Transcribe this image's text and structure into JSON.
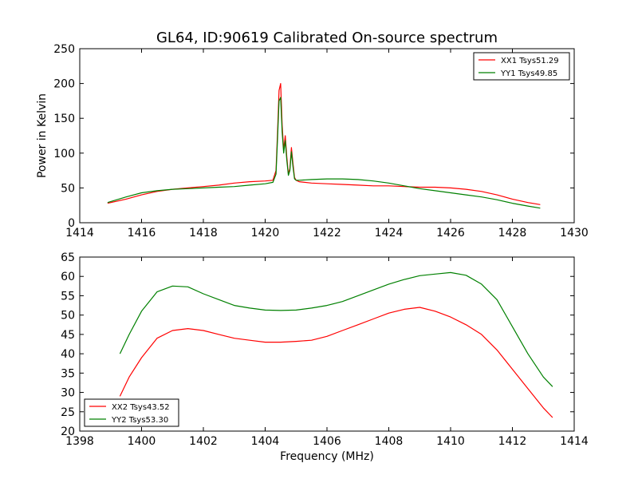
{
  "chart_data": [
    {
      "type": "line",
      "title": "GL64, ID:90619 Calibrated On-source spectrum",
      "xlabel": "",
      "ylabel": "Power in Kelvin",
      "xlim": [
        1414,
        1430
      ],
      "ylim": [
        0,
        250
      ],
      "xticks": [
        "1414",
        "1416",
        "1418",
        "1420",
        "1422",
        "1424",
        "1426",
        "1428",
        "1430"
      ],
      "yticks": [
        "0",
        "50",
        "100",
        "150",
        "200",
        "250"
      ],
      "legend_position": "top-right",
      "grid": false,
      "series": [
        {
          "name": "XX1 Tsys51.29",
          "color": "#ff0000",
          "x": [
            1414.9,
            1415.5,
            1416.0,
            1416.5,
            1417.0,
            1417.5,
            1418.0,
            1418.5,
            1419.0,
            1419.5,
            1420.0,
            1420.25,
            1420.35,
            1420.4,
            1420.45,
            1420.5,
            1420.55,
            1420.6,
            1420.65,
            1420.7,
            1420.75,
            1420.8,
            1420.85,
            1420.9,
            1420.95,
            1421.0,
            1421.1,
            1421.5,
            1422.0,
            1422.5,
            1423.0,
            1423.5,
            1424.0,
            1424.5,
            1425.0,
            1425.5,
            1426.0,
            1426.5,
            1427.0,
            1427.5,
            1428.0,
            1428.5,
            1428.9
          ],
          "y": [
            28,
            34,
            40,
            45,
            48,
            50,
            52,
            54,
            57,
            59,
            60,
            61,
            75,
            130,
            190,
            200,
            140,
            105,
            125,
            95,
            70,
            78,
            108,
            85,
            65,
            61,
            59,
            57,
            56,
            55,
            54,
            53,
            53,
            52,
            51,
            51,
            50,
            48,
            45,
            40,
            34,
            29,
            26
          ]
        },
        {
          "name": "YY1 Tsys49.85",
          "color": "#008000",
          "x": [
            1414.9,
            1415.5,
            1416.0,
            1416.5,
            1417.0,
            1417.5,
            1418.0,
            1418.5,
            1419.0,
            1419.5,
            1420.0,
            1420.25,
            1420.35,
            1420.4,
            1420.45,
            1420.5,
            1420.55,
            1420.6,
            1420.65,
            1420.7,
            1420.75,
            1420.8,
            1420.85,
            1420.9,
            1420.95,
            1421.0,
            1421.1,
            1421.5,
            1422.0,
            1422.5,
            1423.0,
            1423.5,
            1424.0,
            1424.5,
            1425.0,
            1425.5,
            1426.0,
            1426.5,
            1427.0,
            1427.5,
            1428.0,
            1428.5,
            1428.9
          ],
          "y": [
            29,
            37,
            43,
            46,
            48,
            49,
            50,
            51,
            52,
            54,
            56,
            58,
            70,
            120,
            175,
            180,
            130,
            100,
            118,
            90,
            68,
            75,
            102,
            80,
            63,
            61,
            61,
            62,
            63,
            63,
            62,
            60,
            57,
            53,
            49,
            46,
            43,
            40,
            37,
            33,
            28,
            24,
            21
          ]
        }
      ]
    },
    {
      "type": "line",
      "title": "",
      "xlabel": "Frequency (MHz)",
      "ylabel": "",
      "xlim": [
        1398,
        1414
      ],
      "ylim": [
        20,
        65
      ],
      "xticks": [
        "1398",
        "1400",
        "1402",
        "1404",
        "1406",
        "1408",
        "1410",
        "1412",
        "1414"
      ],
      "yticks": [
        "20",
        "25",
        "30",
        "35",
        "40",
        "45",
        "50",
        "55",
        "60",
        "65"
      ],
      "legend_position": "bottom-left",
      "grid": false,
      "series": [
        {
          "name": "XX2 Tsys43.52",
          "color": "#ff0000",
          "x": [
            1399.3,
            1399.6,
            1400.0,
            1400.5,
            1401.0,
            1401.5,
            1402.0,
            1402.5,
            1403.0,
            1403.5,
            1404.0,
            1404.5,
            1405.0,
            1405.5,
            1406.0,
            1406.5,
            1407.0,
            1407.5,
            1408.0,
            1408.5,
            1409.0,
            1409.5,
            1410.0,
            1410.5,
            1411.0,
            1411.5,
            1412.0,
            1412.5,
            1413.0,
            1413.3
          ],
          "y": [
            29,
            34,
            39,
            44,
            46,
            46.5,
            46,
            45,
            44,
            43.5,
            43,
            43,
            43.2,
            43.5,
            44.5,
            46,
            47.5,
            49,
            50.5,
            51.5,
            52,
            51,
            49.5,
            47.5,
            45,
            41,
            36,
            31,
            26,
            23.5
          ]
        },
        {
          "name": "YY2 Tsys53.30",
          "color": "#008000",
          "x": [
            1399.3,
            1399.6,
            1400.0,
            1400.5,
            1401.0,
            1401.5,
            1402.0,
            1402.5,
            1403.0,
            1403.5,
            1404.0,
            1404.5,
            1405.0,
            1405.5,
            1406.0,
            1406.5,
            1407.0,
            1407.5,
            1408.0,
            1408.5,
            1409.0,
            1409.5,
            1410.0,
            1410.5,
            1411.0,
            1411.5,
            1412.0,
            1412.5,
            1413.0,
            1413.3
          ],
          "y": [
            40,
            45,
            51,
            56,
            57.5,
            57.3,
            55.5,
            54,
            52.5,
            51.8,
            51.3,
            51.2,
            51.3,
            51.8,
            52.5,
            53.5,
            55,
            56.5,
            58,
            59.2,
            60.2,
            60.6,
            61,
            60.3,
            58,
            54,
            47,
            40,
            34,
            31.5
          ]
        }
      ]
    }
  ]
}
